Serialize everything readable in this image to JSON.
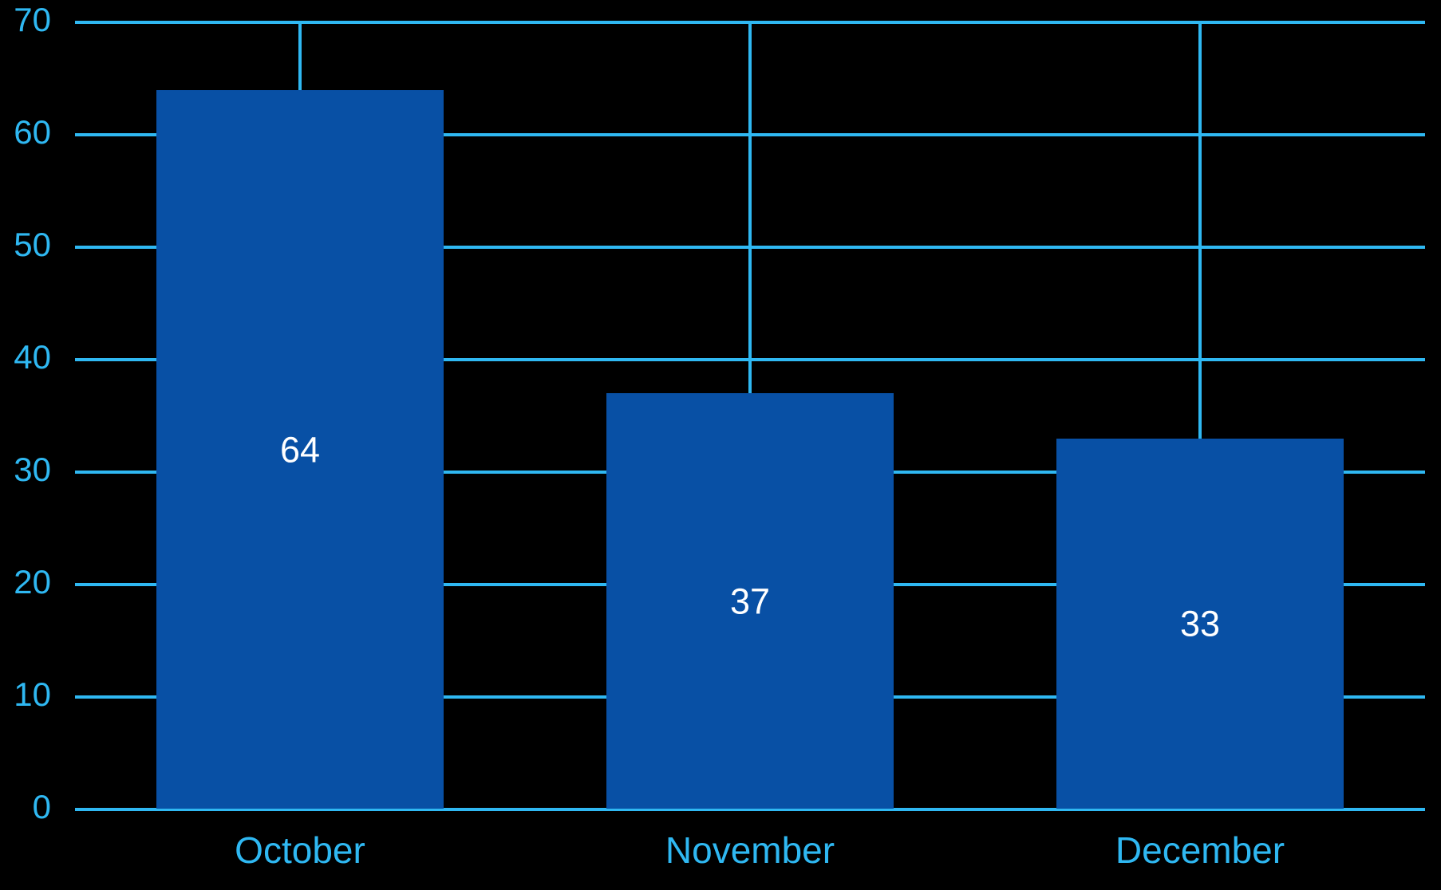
{
  "chart_data": {
    "type": "bar",
    "categories": [
      "October",
      "November",
      "December"
    ],
    "values": [
      64,
      37,
      33
    ],
    "title": "",
    "xlabel": "",
    "ylabel": "",
    "ylim": [
      0,
      70
    ],
    "yticks": [
      0,
      10,
      20,
      30,
      40,
      50,
      60,
      70
    ],
    "grid": true,
    "legend": "none",
    "value_labels": [
      "64",
      "37",
      "33"
    ],
    "ytick_labels": [
      "0",
      "10",
      "20",
      "30",
      "40",
      "50",
      "60",
      "70"
    ],
    "colors": {
      "background": "#000000",
      "bar_fill": "#0850A5",
      "grid_line": "#2FB8F2",
      "axis_tick_text": "#2FB8F2",
      "category_text": "#2FB8F2",
      "value_text": "#FFFFFF"
    }
  }
}
